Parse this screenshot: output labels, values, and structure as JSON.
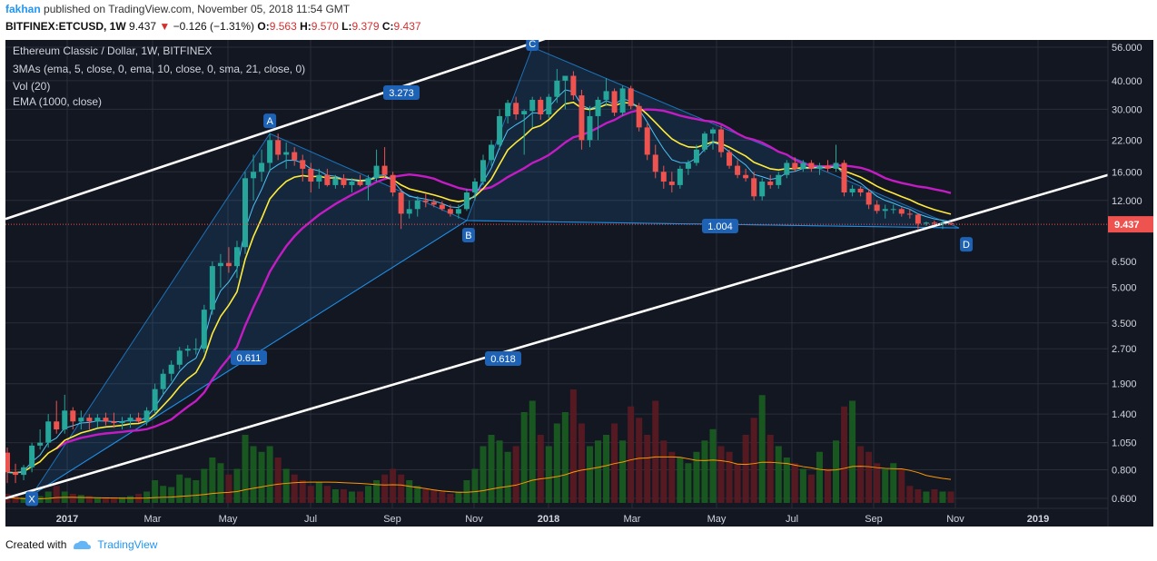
{
  "header": {
    "author": "fakhan",
    "published_text": "published on TradingView.com, November 05, 2018 11:54 GMT",
    "symbol": "BITFINEX:ETCUSD, 1W",
    "last": "9.437",
    "change": "−0.126 (−1.31%)",
    "o_label": "O:",
    "o_value": "9.563",
    "h_label": "H:",
    "h_value": "9.570",
    "l_label": "L:",
    "l_value": "9.379",
    "c_label": "C:",
    "c_value": "9.437"
  },
  "legend": {
    "title": "Ethereum Classic / Dollar, 1W, BITFINEX",
    "line2": "3MAs (ema, 5, close, 0, ema, 10, close, 0, sma, 21, close, 0)",
    "line3": "Vol (20)",
    "line4": "EMA (1000, close)"
  },
  "colors": {
    "background": "#131722",
    "up": "#26a69a",
    "down": "#ef5350",
    "ema5": "#4fc3f7",
    "ema10": "#ffeb3b",
    "sma21": "#c41cc4",
    "volume_ma": "#ff9800",
    "channel": "#ffffff",
    "pattern": "#2196f3",
    "price_tag": "#ef5350"
  },
  "price_axis": {
    "ticks": [
      "56.000",
      "40.000",
      "30.000",
      "22.000",
      "16.000",
      "12.000",
      "9.437",
      "6.500",
      "5.000",
      "3.500",
      "2.700",
      "1.900",
      "1.400",
      "1.050",
      "0.800",
      "0.600"
    ],
    "current_price": "9.437",
    "scale": "log"
  },
  "time_axis": {
    "ticks": [
      "2017",
      "Mar",
      "May",
      "Jul",
      "Sep",
      "Nov",
      "2018",
      "Mar",
      "May",
      "Jul",
      "Sep",
      "Nov",
      "2019"
    ]
  },
  "pattern_points": {
    "X": "X",
    "A": "A",
    "B": "B",
    "C": "C",
    "D": "D"
  },
  "pattern_ratios": [
    "3.273",
    "1.004",
    "0.611",
    "0.618"
  ],
  "footer": {
    "created_with": "Created with",
    "brand": "TradingView"
  },
  "chart_data": {
    "type": "candlestick",
    "title": "Ethereum Classic / Dollar, 1W, BITFINEX",
    "scale": "log",
    "ylim": [
      0.55,
      60
    ],
    "x_ticks": [
      "2017",
      "Mar",
      "May",
      "Jul",
      "Sep",
      "Nov",
      "2018",
      "Mar",
      "May",
      "Jul",
      "Sep",
      "Nov",
      "2019"
    ],
    "last_close": 9.437,
    "candles": [
      {
        "o": 0.95,
        "h": 1.0,
        "l": 0.7,
        "c": 0.78
      },
      {
        "o": 0.78,
        "h": 0.85,
        "l": 0.7,
        "c": 0.76
      },
      {
        "o": 0.76,
        "h": 0.84,
        "l": 0.72,
        "c": 0.82
      },
      {
        "o": 0.82,
        "h": 1.05,
        "l": 0.78,
        "c": 1.02
      },
      {
        "o": 1.02,
        "h": 1.2,
        "l": 0.98,
        "c": 1.05
      },
      {
        "o": 1.05,
        "h": 1.4,
        "l": 1.0,
        "c": 1.3
      },
      {
        "o": 1.3,
        "h": 1.6,
        "l": 1.15,
        "c": 1.2
      },
      {
        "o": 1.2,
        "h": 1.7,
        "l": 1.15,
        "c": 1.45
      },
      {
        "o": 1.45,
        "h": 1.5,
        "l": 1.2,
        "c": 1.3
      },
      {
        "o": 1.3,
        "h": 1.45,
        "l": 1.2,
        "c": 1.35
      },
      {
        "o": 1.35,
        "h": 1.4,
        "l": 1.2,
        "c": 1.3
      },
      {
        "o": 1.3,
        "h": 1.4,
        "l": 1.22,
        "c": 1.35
      },
      {
        "o": 1.35,
        "h": 1.42,
        "l": 1.25,
        "c": 1.3
      },
      {
        "o": 1.3,
        "h": 1.42,
        "l": 1.22,
        "c": 1.28
      },
      {
        "o": 1.28,
        "h": 1.36,
        "l": 1.2,
        "c": 1.3
      },
      {
        "o": 1.3,
        "h": 1.4,
        "l": 1.22,
        "c": 1.35
      },
      {
        "o": 1.35,
        "h": 1.42,
        "l": 1.28,
        "c": 1.3
      },
      {
        "o": 1.3,
        "h": 1.5,
        "l": 1.25,
        "c": 1.45
      },
      {
        "o": 1.45,
        "h": 1.9,
        "l": 1.4,
        "c": 1.8
      },
      {
        "o": 1.8,
        "h": 2.2,
        "l": 1.7,
        "c": 2.1
      },
      {
        "o": 2.1,
        "h": 2.4,
        "l": 1.95,
        "c": 2.3
      },
      {
        "o": 2.3,
        "h": 2.75,
        "l": 2.2,
        "c": 2.65
      },
      {
        "o": 2.65,
        "h": 2.8,
        "l": 2.5,
        "c": 2.7
      },
      {
        "o": 2.7,
        "h": 3.0,
        "l": 2.55,
        "c": 2.7
      },
      {
        "o": 2.7,
        "h": 4.2,
        "l": 2.6,
        "c": 4.0
      },
      {
        "o": 4.0,
        "h": 6.5,
        "l": 3.8,
        "c": 6.2
      },
      {
        "o": 6.2,
        "h": 7.0,
        "l": 5.0,
        "c": 6.4
      },
      {
        "o": 6.4,
        "h": 7.5,
        "l": 5.8,
        "c": 6.2
      },
      {
        "o": 6.2,
        "h": 8.0,
        "l": 5.5,
        "c": 7.5
      },
      {
        "o": 7.5,
        "h": 16.0,
        "l": 7.0,
        "c": 15.0
      },
      {
        "o": 15.0,
        "h": 19.0,
        "l": 12.0,
        "c": 16.0
      },
      {
        "o": 16.0,
        "h": 20.0,
        "l": 14.5,
        "c": 17.5
      },
      {
        "o": 17.5,
        "h": 23.5,
        "l": 16.0,
        "c": 22.0
      },
      {
        "o": 22.0,
        "h": 23.5,
        "l": 18.0,
        "c": 19.0
      },
      {
        "o": 19.0,
        "h": 21.5,
        "l": 16.5,
        "c": 19.5
      },
      {
        "o": 19.5,
        "h": 20.5,
        "l": 17.0,
        "c": 18.0
      },
      {
        "o": 18.0,
        "h": 19.0,
        "l": 14.5,
        "c": 16.5
      },
      {
        "o": 16.5,
        "h": 17.5,
        "l": 13.0,
        "c": 14.5
      },
      {
        "o": 14.5,
        "h": 16.5,
        "l": 13.5,
        "c": 15.5
      },
      {
        "o": 15.5,
        "h": 16.5,
        "l": 13.8,
        "c": 14.0
      },
      {
        "o": 14.0,
        "h": 15.5,
        "l": 13.5,
        "c": 15.0
      },
      {
        "o": 15.0,
        "h": 15.6,
        "l": 13.6,
        "c": 14.0
      },
      {
        "o": 14.0,
        "h": 15.0,
        "l": 13.0,
        "c": 14.5
      },
      {
        "o": 14.5,
        "h": 15.5,
        "l": 13.8,
        "c": 14.0
      },
      {
        "o": 14.0,
        "h": 15.5,
        "l": 12.0,
        "c": 15.0
      },
      {
        "o": 15.0,
        "h": 20.0,
        "l": 14.5,
        "c": 17.0
      },
      {
        "o": 17.0,
        "h": 20.5,
        "l": 15.0,
        "c": 15.5
      },
      {
        "o": 15.5,
        "h": 16.0,
        "l": 12.5,
        "c": 13.0
      },
      {
        "o": 13.0,
        "h": 13.5,
        "l": 9.0,
        "c": 10.5
      },
      {
        "o": 10.5,
        "h": 12.0,
        "l": 10.0,
        "c": 11.0
      },
      {
        "o": 11.0,
        "h": 12.5,
        "l": 10.2,
        "c": 12.0
      },
      {
        "o": 12.0,
        "h": 12.8,
        "l": 11.2,
        "c": 11.8
      },
      {
        "o": 11.8,
        "h": 12.2,
        "l": 11.2,
        "c": 11.5
      },
      {
        "o": 11.5,
        "h": 11.9,
        "l": 10.8,
        "c": 11.0
      },
      {
        "o": 11.0,
        "h": 11.5,
        "l": 10.2,
        "c": 10.5
      },
      {
        "o": 10.5,
        "h": 11.5,
        "l": 10.0,
        "c": 11.0
      },
      {
        "o": 11.0,
        "h": 13.5,
        "l": 10.8,
        "c": 13.0
      },
      {
        "o": 13.0,
        "h": 15.0,
        "l": 12.0,
        "c": 14.5
      },
      {
        "o": 14.5,
        "h": 19.0,
        "l": 14.0,
        "c": 18.0
      },
      {
        "o": 18.0,
        "h": 22.0,
        "l": 17.0,
        "c": 21.0
      },
      {
        "o": 21.0,
        "h": 30.0,
        "l": 20.0,
        "c": 28.0
      },
      {
        "o": 28.0,
        "h": 33.0,
        "l": 26.0,
        "c": 32.0
      },
      {
        "o": 32.0,
        "h": 34.0,
        "l": 27.0,
        "c": 28.5
      },
      {
        "o": 28.5,
        "h": 30.0,
        "l": 19.0,
        "c": 29.5
      },
      {
        "o": 29.5,
        "h": 34.0,
        "l": 25.0,
        "c": 33.0
      },
      {
        "o": 33.0,
        "h": 34.0,
        "l": 27.0,
        "c": 28.5
      },
      {
        "o": 28.5,
        "h": 35.0,
        "l": 27.5,
        "c": 34.0
      },
      {
        "o": 34.0,
        "h": 45.0,
        "l": 32.0,
        "c": 40.0
      },
      {
        "o": 40.0,
        "h": 42.0,
        "l": 30.0,
        "c": 42.0
      },
      {
        "o": 42.0,
        "h": 44.0,
        "l": 33.0,
        "c": 34.5
      },
      {
        "o": 34.5,
        "h": 36.5,
        "l": 20.0,
        "c": 22.0
      },
      {
        "o": 22.0,
        "h": 31.0,
        "l": 20.5,
        "c": 28.0
      },
      {
        "o": 28.0,
        "h": 34.0,
        "l": 22.0,
        "c": 33.0
      },
      {
        "o": 33.0,
        "h": 41.0,
        "l": 31.0,
        "c": 36.0
      },
      {
        "o": 36.0,
        "h": 37.0,
        "l": 28.0,
        "c": 29.0
      },
      {
        "o": 29.0,
        "h": 38.0,
        "l": 28.0,
        "c": 37.0
      },
      {
        "o": 37.0,
        "h": 38.0,
        "l": 30.0,
        "c": 31.0
      },
      {
        "o": 31.0,
        "h": 32.0,
        "l": 24.0,
        "c": 25.0
      },
      {
        "o": 25.0,
        "h": 26.0,
        "l": 18.0,
        "c": 19.0
      },
      {
        "o": 19.0,
        "h": 21.0,
        "l": 15.0,
        "c": 16.0
      },
      {
        "o": 16.0,
        "h": 17.0,
        "l": 13.5,
        "c": 14.5
      },
      {
        "o": 14.5,
        "h": 16.0,
        "l": 13.0,
        "c": 14.0
      },
      {
        "o": 14.0,
        "h": 17.0,
        "l": 13.5,
        "c": 16.5
      },
      {
        "o": 16.5,
        "h": 18.0,
        "l": 15.5,
        "c": 17.5
      },
      {
        "o": 17.5,
        "h": 21.0,
        "l": 17.0,
        "c": 20.0
      },
      {
        "o": 20.0,
        "h": 24.0,
        "l": 19.5,
        "c": 23.5
      },
      {
        "o": 23.5,
        "h": 25.0,
        "l": 20.0,
        "c": 24.5
      },
      {
        "o": 24.5,
        "h": 25.5,
        "l": 18.5,
        "c": 19.5
      },
      {
        "o": 19.5,
        "h": 20.0,
        "l": 16.5,
        "c": 17.0
      },
      {
        "o": 17.0,
        "h": 18.0,
        "l": 15.0,
        "c": 15.5
      },
      {
        "o": 15.5,
        "h": 16.5,
        "l": 14.5,
        "c": 15.0
      },
      {
        "o": 15.0,
        "h": 16.0,
        "l": 12.0,
        "c": 12.5
      },
      {
        "o": 12.5,
        "h": 15.0,
        "l": 12.0,
        "c": 14.5
      },
      {
        "o": 14.5,
        "h": 15.5,
        "l": 13.5,
        "c": 14.0
      },
      {
        "o": 14.0,
        "h": 16.0,
        "l": 13.5,
        "c": 15.5
      },
      {
        "o": 15.5,
        "h": 18.0,
        "l": 15.0,
        "c": 17.5
      },
      {
        "o": 17.5,
        "h": 18.5,
        "l": 16.0,
        "c": 16.5
      },
      {
        "o": 16.5,
        "h": 18.0,
        "l": 16.0,
        "c": 17.5
      },
      {
        "o": 17.5,
        "h": 18.0,
        "l": 16.0,
        "c": 16.5
      },
      {
        "o": 16.5,
        "h": 17.5,
        "l": 15.5,
        "c": 17.0
      },
      {
        "o": 17.0,
        "h": 18.0,
        "l": 16.0,
        "c": 16.5
      },
      {
        "o": 16.5,
        "h": 21.0,
        "l": 16.0,
        "c": 17.5
      },
      {
        "o": 17.5,
        "h": 18.0,
        "l": 12.5,
        "c": 13.0
      },
      {
        "o": 13.0,
        "h": 14.0,
        "l": 12.5,
        "c": 13.5
      },
      {
        "o": 13.5,
        "h": 13.8,
        "l": 12.5,
        "c": 13.0
      },
      {
        "o": 13.0,
        "h": 13.5,
        "l": 11.0,
        "c": 11.5
      },
      {
        "o": 11.5,
        "h": 12.0,
        "l": 10.5,
        "c": 10.8
      },
      {
        "o": 10.8,
        "h": 11.5,
        "l": 10.0,
        "c": 11.0
      },
      {
        "o": 11.0,
        "h": 11.5,
        "l": 10.5,
        "c": 11.0
      },
      {
        "o": 11.0,
        "h": 11.2,
        "l": 10.2,
        "c": 10.5
      },
      {
        "o": 10.5,
        "h": 11.0,
        "l": 10.0,
        "c": 10.4
      },
      {
        "o": 10.4,
        "h": 10.5,
        "l": 9.0,
        "c": 9.5
      },
      {
        "o": 9.5,
        "h": 9.7,
        "l": 9.3,
        "c": 9.6
      },
      {
        "o": 9.6,
        "h": 9.8,
        "l": 9.4,
        "c": 9.5
      },
      {
        "o": 9.5,
        "h": 9.9,
        "l": 9.0,
        "c": 9.56
      },
      {
        "o": 9.563,
        "h": 9.57,
        "l": 9.379,
        "c": 9.437
      }
    ],
    "volume_relative": [
      0.08,
      0.06,
      0.05,
      0.05,
      0.06,
      0.1,
      0.15,
      0.1,
      0.08,
      0.07,
      0.06,
      0.05,
      0.05,
      0.05,
      0.05,
      0.06,
      0.08,
      0.1,
      0.2,
      0.15,
      0.14,
      0.25,
      0.22,
      0.2,
      0.3,
      0.4,
      0.35,
      0.25,
      0.3,
      0.6,
      0.5,
      0.45,
      0.5,
      0.4,
      0.3,
      0.25,
      0.2,
      0.15,
      0.18,
      0.15,
      0.12,
      0.12,
      0.1,
      0.1,
      0.15,
      0.2,
      0.25,
      0.3,
      0.25,
      0.2,
      0.15,
      0.12,
      0.12,
      0.1,
      0.08,
      0.1,
      0.2,
      0.3,
      0.5,
      0.6,
      0.55,
      0.45,
      0.5,
      0.8,
      0.9,
      0.6,
      0.5,
      0.7,
      0.8,
      1.0,
      0.7,
      0.5,
      0.55,
      0.6,
      0.7,
      0.55,
      0.85,
      0.75,
      0.6,
      0.9,
      0.55,
      0.45,
      0.4,
      0.35,
      0.45,
      0.55,
      0.65,
      0.5,
      0.45,
      0.35,
      0.6,
      0.75,
      0.95,
      0.6,
      0.5,
      0.4,
      0.35,
      0.3,
      0.25,
      0.45,
      0.3,
      0.55,
      0.85,
      0.9,
      0.5,
      0.45,
      0.35,
      0.3,
      0.35,
      0.3,
      0.15,
      0.12,
      0.1,
      0.12,
      0.1,
      0.1
    ]
  }
}
